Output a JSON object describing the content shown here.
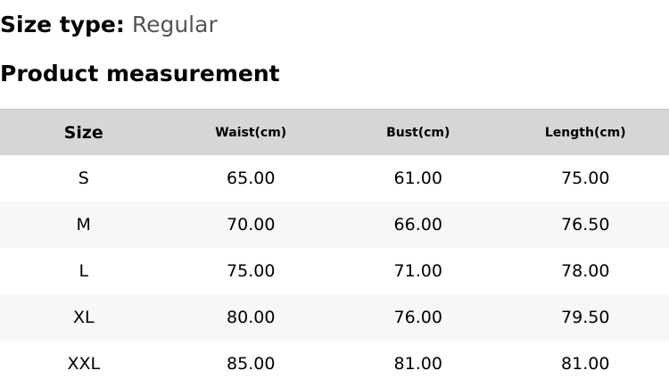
{
  "size_type": {
    "label": "Size type:",
    "value": "Regular"
  },
  "section_title": "Product measurement",
  "table": {
    "headers": [
      "Size",
      "Waist(cm)",
      "Bust(cm)",
      "Length(cm)"
    ],
    "rows": [
      [
        "S",
        "65.00",
        "61.00",
        "75.00"
      ],
      [
        "M",
        "70.00",
        "66.00",
        "76.50"
      ],
      [
        "L",
        "75.00",
        "71.00",
        "78.00"
      ],
      [
        "XL",
        "80.00",
        "76.00",
        "79.50"
      ],
      [
        "XXL",
        "85.00",
        "81.00",
        "81.00"
      ]
    ]
  }
}
